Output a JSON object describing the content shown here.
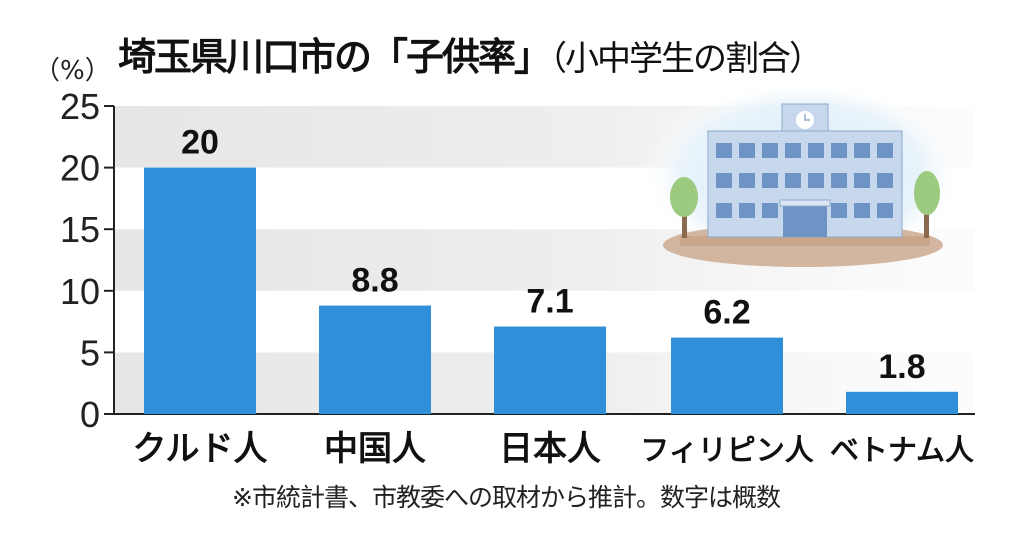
{
  "chart_data": {
    "type": "bar",
    "title": "埼玉県川口市の「子供率」",
    "subtitle": "（小中学生の割合）",
    "ylabel": "（%）",
    "xlabel": "",
    "categories": [
      "クルド人",
      "中国人",
      "日本人",
      "フィリピン人",
      "ベトナム人"
    ],
    "values": [
      20,
      8.8,
      7.1,
      6.2,
      1.8
    ],
    "data_labels": [
      "20",
      "8.8",
      "7.1",
      "6.2",
      "1.8"
    ],
    "ylim": [
      0,
      25
    ],
    "yticks": [
      0,
      5,
      10,
      15,
      20,
      25
    ],
    "grid": "alternating bands",
    "note": "※市統計書、市教委への取材から推計。数字は概数",
    "colors": {
      "bar": "#2f8fd8",
      "band": "#ebebeb",
      "text": "#111111"
    }
  }
}
